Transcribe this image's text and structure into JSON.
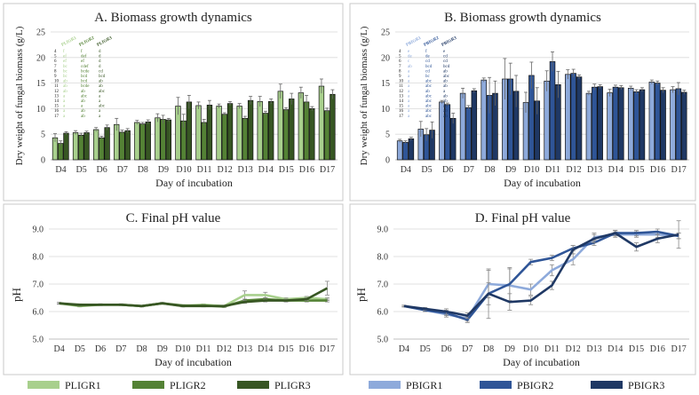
{
  "legend_left": [
    {
      "name": "PLIGR1",
      "color": "#a8d08d"
    },
    {
      "name": "PLIGR2",
      "color": "#548235"
    },
    {
      "name": "PLIGR3",
      "color": "#375623"
    }
  ],
  "legend_right": [
    {
      "name": "PBIGR1",
      "color": "#8eaadb"
    },
    {
      "name": "PBIGR2",
      "color": "#2f5597"
    },
    {
      "name": "PBIGR3",
      "color": "#1f3864"
    }
  ],
  "chart_data": [
    {
      "id": "A",
      "type": "bar",
      "title": "A. Biomass growth dynamics",
      "xlabel": "Day of incubation",
      "ylabel": "Dry weight of fungal biomass (g/L)",
      "ylim": [
        0,
        25
      ],
      "yticks": [
        0,
        5,
        10,
        15,
        20,
        25
      ],
      "categories": [
        "D4",
        "D5",
        "D6",
        "D7",
        "D8",
        "D9",
        "D10",
        "D11",
        "D12",
        "D13",
        "D14",
        "D15",
        "D16",
        "D17"
      ],
      "series": [
        {
          "name": "PLIGR1",
          "color": "#a8d08d",
          "values": [
            4.3,
            5.3,
            5.9,
            6.9,
            7.3,
            8.2,
            10.5,
            10.6,
            10.5,
            10.5,
            11.4,
            13.4,
            13.1,
            14.4
          ],
          "errors": [
            0.8,
            0.4,
            0.4,
            1.2,
            0.4,
            0.8,
            1.7,
            0.7,
            0.4,
            0.5,
            1.0,
            1.4,
            1.1,
            1.4
          ]
        },
        {
          "name": "PLIGR2",
          "color": "#548235",
          "values": [
            3.2,
            4.8,
            4.3,
            5.4,
            7.0,
            7.9,
            7.6,
            7.3,
            8.9,
            8.1,
            9.1,
            9.8,
            11.3,
            9.6
          ],
          "errors": [
            0.5,
            0.4,
            0.3,
            0.4,
            0.3,
            0.8,
            1.3,
            0.6,
            0.3,
            0.4,
            0.4,
            0.4,
            1.3,
            0.5
          ]
        },
        {
          "name": "PLIGR3",
          "color": "#375623",
          "values": [
            5.2,
            5.3,
            6.3,
            5.7,
            7.4,
            7.8,
            11.3,
            10.7,
            11.0,
            11.6,
            11.4,
            11.9,
            10.0,
            12.8
          ],
          "errors": [
            0.3,
            0.3,
            0.5,
            0.4,
            0.4,
            0.3,
            1.3,
            0.9,
            0.4,
            0.8,
            0.5,
            1.1,
            0.4,
            0.9
          ]
        }
      ],
      "annotations": {
        "headers": [
          "PLIGR1",
          "PLIGR2",
          "PLIGR3"
        ],
        "rows": [
          {
            "day": "4",
            "l": [
              "f",
              "f",
              "d"
            ]
          },
          {
            "day": "5",
            "l": [
              "ef",
              "def",
              "d"
            ]
          },
          {
            "day": "6",
            "l": [
              "ef",
              "ef",
              "d"
            ]
          },
          {
            "day": "7",
            "l": [
              "bc",
              "cdef",
              "d"
            ]
          },
          {
            "day": "8",
            "l": [
              "bc",
              "bcde",
              "cd"
            ]
          },
          {
            "day": "9",
            "l": [
              "bc",
              "bcd",
              "bcd"
            ]
          },
          {
            "day": "10",
            "l": [
              "ab",
              "bcd",
              "ab"
            ]
          },
          {
            "day": "11",
            "l": [
              "ab",
              "bcde",
              "ab"
            ]
          },
          {
            "day": "12",
            "l": [
              "ab",
              "ab",
              "abc"
            ]
          },
          {
            "day": "13",
            "l": [
              "a",
              "abc",
              "a"
            ]
          },
          {
            "day": "14",
            "l": [
              "a",
              "ab",
              "a"
            ]
          },
          {
            "day": "15",
            "l": [
              "a",
              "a",
              "abc"
            ]
          },
          {
            "day": "16",
            "l": [
              "a",
              "ab",
              "a"
            ]
          },
          {
            "day": "17",
            "l": [
              "a",
              "ab",
              "a"
            ]
          }
        ]
      }
    },
    {
      "id": "B",
      "type": "bar",
      "title": "B. Biomass growth dynamics",
      "xlabel": "Day of incubation",
      "ylabel": "Dry weight of fungal biomass (g/L)",
      "ylim": [
        0,
        25
      ],
      "yticks": [
        0,
        5,
        10,
        15,
        20,
        25
      ],
      "categories": [
        "D4",
        "D5",
        "D6",
        "D7",
        "D8",
        "D9",
        "D10",
        "D11",
        "D12",
        "D13",
        "D14",
        "D15",
        "D16",
        "D17"
      ],
      "series": [
        {
          "name": "PBIGR1",
          "color": "#8eaadb",
          "values": [
            3.7,
            6.0,
            11.3,
            13.0,
            15.6,
            15.8,
            11.2,
            15.4,
            16.7,
            13.0,
            13.1,
            14.0,
            15.2,
            13.7
          ],
          "errors": [
            0.3,
            1.5,
            0.3,
            1.0,
            0.4,
            4.0,
            2.0,
            2.0,
            0.9,
            0.4,
            0.7,
            0.4,
            0.4,
            0.6
          ]
        },
        {
          "name": "PBIGR2",
          "color": "#2f5597",
          "values": [
            3.4,
            4.9,
            10.8,
            10.2,
            12.6,
            15.8,
            16.5,
            19.2,
            16.9,
            14.2,
            14.2,
            13.3,
            15.0,
            13.9
          ],
          "errors": [
            0.3,
            1.2,
            0.3,
            0.4,
            3.5,
            3.1,
            2.6,
            1.9,
            0.8,
            0.6,
            0.4,
            0.4,
            0.4,
            1.2
          ]
        },
        {
          "name": "PBIGR3",
          "color": "#1f3864",
          "values": [
            4.1,
            5.8,
            8.1,
            13.5,
            13.0,
            13.4,
            11.5,
            14.7,
            16.2,
            14.3,
            14.1,
            13.7,
            13.6,
            13.2
          ],
          "errors": [
            0.3,
            1.6,
            1.0,
            0.4,
            2.4,
            3.1,
            2.6,
            2.6,
            0.4,
            0.4,
            0.4,
            0.4,
            0.5,
            0.4
          ]
        }
      ],
      "annotations": {
        "headers": [
          "PBIGR1",
          "PBIGR2",
          "PBIGR3"
        ],
        "rows": [
          {
            "day": "4",
            "l": [
              "e",
              "f",
              "e"
            ]
          },
          {
            "day": "5",
            "l": [
              "de",
              "de",
              "cd"
            ]
          },
          {
            "day": "6",
            "l": [
              "c",
              "cd",
              "cd"
            ]
          },
          {
            "day": "7",
            "l": [
              "ab",
              "bcd",
              "bcd"
            ]
          },
          {
            "day": "8",
            "l": [
              "a",
              "cd",
              "ab"
            ]
          },
          {
            "day": "9",
            "l": [
              "a",
              "bc",
              "abc"
            ]
          },
          {
            "day": "10",
            "l": [
              "a",
              "abc",
              "ab"
            ]
          },
          {
            "day": "11",
            "l": [
              "a",
              "abc",
              "ab"
            ]
          },
          {
            "day": "12",
            "l": [
              "a",
              "ab",
              "a"
            ]
          },
          {
            "day": "13",
            "l": [
              "a",
              "abc",
              "ab"
            ]
          },
          {
            "day": "14",
            "l": [
              "a",
              "abc",
              "ab"
            ]
          },
          {
            "day": "15",
            "l": [
              "a",
              "abc",
              "ab"
            ]
          },
          {
            "day": "16",
            "l": [
              "a",
              "abc",
              "ab"
            ]
          },
          {
            "day": "17",
            "l": [
              "a",
              "abc",
              "ab"
            ]
          }
        ]
      }
    },
    {
      "id": "C",
      "type": "line",
      "title": "C. Final pH value",
      "xlabel": "Day of incubation",
      "ylabel": "pH",
      "ylim": [
        5.0,
        9.0
      ],
      "yticks": [
        5.0,
        6.0,
        7.0,
        8.0,
        9.0
      ],
      "categories": [
        "D4",
        "D5",
        "D6",
        "D7",
        "D8",
        "D9",
        "D10",
        "D11",
        "D12",
        "D13",
        "D14",
        "D15",
        "D16",
        "D17"
      ],
      "series": [
        {
          "name": "PLIGR1",
          "color": "#a8d08d",
          "values": [
            6.3,
            6.2,
            6.25,
            6.25,
            6.2,
            6.3,
            6.2,
            6.25,
            6.2,
            6.6,
            6.6,
            6.45,
            6.5,
            6.45
          ],
          "errors": [
            0.03,
            0.03,
            0.03,
            0.03,
            0.03,
            0.03,
            0.03,
            0.03,
            0.03,
            0.15,
            0.1,
            0.05,
            0.05,
            0.05
          ]
        },
        {
          "name": "PLIGR2",
          "color": "#548235",
          "values": [
            6.3,
            6.22,
            6.25,
            6.25,
            6.2,
            6.3,
            6.22,
            6.22,
            6.18,
            6.4,
            6.45,
            6.4,
            6.4,
            6.4
          ],
          "errors": [
            0.03,
            0.03,
            0.03,
            0.03,
            0.03,
            0.03,
            0.03,
            0.03,
            0.03,
            0.05,
            0.05,
            0.05,
            0.05,
            0.05
          ]
        },
        {
          "name": "PLIGR3",
          "color": "#375623",
          "values": [
            6.3,
            6.25,
            6.25,
            6.25,
            6.2,
            6.3,
            6.2,
            6.2,
            6.2,
            6.35,
            6.4,
            6.4,
            6.45,
            6.85
          ],
          "errors": [
            0.03,
            0.03,
            0.03,
            0.03,
            0.03,
            0.03,
            0.03,
            0.03,
            0.03,
            0.05,
            0.05,
            0.05,
            0.05,
            0.25
          ]
        }
      ]
    },
    {
      "id": "D",
      "type": "line",
      "title": "D. Final pH value",
      "xlabel": "Day of incubation",
      "ylabel": "pH",
      "ylim": [
        5.0,
        9.0
      ],
      "yticks": [
        5.0,
        6.0,
        7.0,
        8.0,
        9.0
      ],
      "categories": [
        "D4",
        "D5",
        "D6",
        "D7",
        "D8",
        "D9",
        "D10",
        "D11",
        "D12",
        "D13",
        "D14",
        "D15",
        "D16",
        "D17"
      ],
      "series": [
        {
          "name": "PBIGR1",
          "color": "#8eaadb",
          "values": [
            6.2,
            6.05,
            5.9,
            5.75,
            7.0,
            6.95,
            6.8,
            7.5,
            7.9,
            8.7,
            8.8,
            8.8,
            8.8,
            8.75
          ],
          "errors": [
            0.03,
            0.05,
            0.1,
            0.1,
            0.5,
            0.6,
            0.2,
            0.2,
            0.2,
            0.15,
            0.1,
            0.1,
            0.1,
            0.1
          ]
        },
        {
          "name": "PBIGR2",
          "color": "#2f5597",
          "values": [
            6.2,
            6.05,
            5.95,
            5.7,
            6.65,
            7.0,
            7.8,
            7.95,
            8.3,
            8.5,
            8.85,
            8.85,
            8.9,
            8.75
          ],
          "errors": [
            0.03,
            0.05,
            0.1,
            0.1,
            0.4,
            0.6,
            0.1,
            0.1,
            0.1,
            0.1,
            0.1,
            0.1,
            0.1,
            0.1
          ]
        },
        {
          "name": "PBIGR3",
          "color": "#1f3864",
          "values": [
            6.2,
            6.1,
            6.0,
            5.85,
            6.65,
            6.35,
            6.4,
            6.95,
            8.25,
            8.65,
            8.85,
            8.35,
            8.65,
            8.8
          ],
          "errors": [
            0.03,
            0.05,
            0.1,
            0.1,
            0.9,
            0.3,
            0.15,
            0.15,
            0.15,
            0.15,
            0.1,
            0.15,
            0.15,
            0.5
          ]
        }
      ]
    }
  ]
}
